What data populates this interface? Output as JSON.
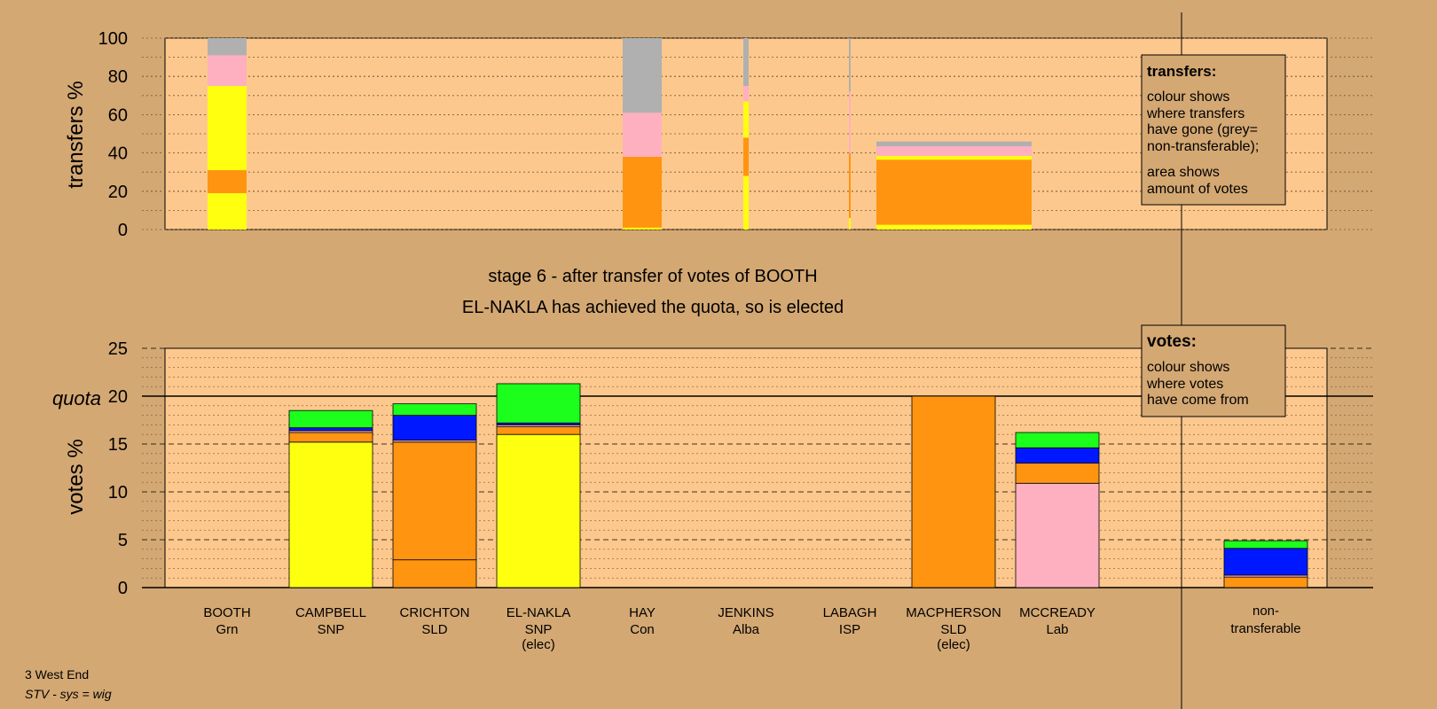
{
  "colors": {
    "page_bg": "#d4a873",
    "plot_bg": "#fdc88d",
    "Grn": "#1cff1c",
    "SNP": "#ffff10",
    "SLD": "#ff9410",
    "Lab": "#ffb0c0",
    "Alba": "#0018ff",
    "nontransferable": "#b0b0b0"
  },
  "headline": {
    "line1": "stage 6 - after transfer of votes of BOOTH",
    "line2": "EL-NAKLA has achieved the quota, so is elected"
  },
  "footer": {
    "line1": "3 West End",
    "line2": "STV - sys = wig"
  },
  "legends": {
    "transfers": {
      "title": "transfers:",
      "body1": [
        "colour shows",
        "where transfers",
        "have gone (grey=",
        "non-transferable);"
      ],
      "body2": [
        "area shows",
        "amount of votes"
      ]
    },
    "votes": {
      "title": "votes:",
      "body": [
        "colour shows",
        "where votes",
        "have come from"
      ]
    }
  },
  "chart_data": [
    {
      "type": "bar",
      "name": "transfers",
      "ylabel": "transfers %",
      "ylim": [
        0,
        100
      ],
      "yticks": [
        0,
        20,
        40,
        60,
        80,
        100
      ],
      "segments_order": [
        "SNP",
        "SLD",
        "SNP",
        "Lab",
        "nontransferable"
      ],
      "bars": [
        {
          "candidate": "BOOTH",
          "width": "wide",
          "segments": [
            {
              "party": "SNP",
              "from": 0,
              "to": 19
            },
            {
              "party": "SLD",
              "from": 19,
              "to": 31
            },
            {
              "party": "SNP",
              "from": 31,
              "to": 75
            },
            {
              "party": "Lab",
              "from": 75,
              "to": 91
            },
            {
              "party": "nontransferable",
              "from": 91,
              "to": 100
            }
          ]
        },
        {
          "candidate": "HAY",
          "width": "wide",
          "segments": [
            {
              "party": "SNP",
              "from": 0,
              "to": 1
            },
            {
              "party": "SLD",
              "from": 1,
              "to": 38
            },
            {
              "party": "Lab",
              "from": 38,
              "to": 61
            },
            {
              "party": "nontransferable",
              "from": 61,
              "to": 100
            }
          ]
        },
        {
          "candidate": "JENKINS",
          "width": "thin",
          "segments": [
            {
              "party": "SNP",
              "from": 0,
              "to": 28
            },
            {
              "party": "SLD",
              "from": 28,
              "to": 48
            },
            {
              "party": "SNP",
              "from": 48,
              "to": 67
            },
            {
              "party": "Lab",
              "from": 67,
              "to": 75
            },
            {
              "party": "nontransferable",
              "from": 75,
              "to": 100
            }
          ]
        },
        {
          "candidate": "LABAGH",
          "width": "hairline",
          "segments": [
            {
              "party": "SNP",
              "from": 0,
              "to": 6
            },
            {
              "party": "SLD",
              "from": 6,
              "to": 40
            },
            {
              "party": "Lab",
              "from": 40,
              "to": 72
            },
            {
              "party": "nontransferable",
              "from": 72,
              "to": 100
            }
          ]
        },
        {
          "candidate": "MACPHERSON",
          "width": "span",
          "segments": [
            {
              "party": "SNP",
              "from": 0,
              "to": 2.5
            },
            {
              "party": "SLD",
              "from": 2.5,
              "to": 36.5
            },
            {
              "party": "SNP",
              "from": 36.5,
              "to": 38.5
            },
            {
              "party": "Lab",
              "from": 38.5,
              "to": 43.5
            },
            {
              "party": "nontransferable",
              "from": 43.5,
              "to": 46
            }
          ]
        }
      ]
    },
    {
      "type": "bar",
      "name": "votes",
      "ylabel": "votes %",
      "ylim": [
        0,
        25
      ],
      "yticks": [
        0,
        5,
        10,
        15,
        20,
        25
      ],
      "quota": 20,
      "quota_label": "quota",
      "candidates": [
        {
          "name": "BOOTH",
          "party": "Grn",
          "elected": false,
          "segments": []
        },
        {
          "name": "CAMPBELL",
          "party": "SNP",
          "elected": false,
          "segments": [
            {
              "party": "SNP",
              "value": 15.2
            },
            {
              "party": "SLD",
              "value": 1.0
            },
            {
              "party": "Lab",
              "value": 0.2
            },
            {
              "party": "Alba",
              "value": 0.3
            },
            {
              "party": "Grn",
              "value": 1.8
            }
          ]
        },
        {
          "name": "CRICHTON",
          "party": "SLD",
          "elected": false,
          "segments": [
            {
              "party": "SLD",
              "value": 2.9
            },
            {
              "party": "SLD",
              "value": 12.3
            },
            {
              "party": "Lab",
              "value": 0.2
            },
            {
              "party": "Alba",
              "value": 2.6
            },
            {
              "party": "Grn",
              "value": 1.2
            }
          ]
        },
        {
          "name": "EL-NAKLA",
          "party": "SNP",
          "elected": true,
          "segments": [
            {
              "party": "SNP",
              "value": 16.0
            },
            {
              "party": "SLD",
              "value": 0.8
            },
            {
              "party": "Lab",
              "value": 0.2
            },
            {
              "party": "Alba",
              "value": 0.2
            },
            {
              "party": "Grn",
              "value": 4.1
            }
          ]
        },
        {
          "name": "HAY",
          "party": "Con",
          "elected": false,
          "segments": []
        },
        {
          "name": "JENKINS",
          "party": "Alba",
          "elected": false,
          "segments": []
        },
        {
          "name": "LABAGH",
          "party": "ISP",
          "elected": false,
          "segments": []
        },
        {
          "name": "MACPHERSON",
          "party": "SLD",
          "elected": true,
          "segments": [
            {
              "party": "SLD",
              "value": 20.0
            }
          ]
        },
        {
          "name": "MCCREADY",
          "party": "Lab",
          "elected": false,
          "segments": [
            {
              "party": "Lab",
              "value": 10.9
            },
            {
              "party": "SLD",
              "value": 2.1
            },
            {
              "party": "Alba",
              "value": 1.6
            },
            {
              "party": "Grn",
              "value": 1.6
            }
          ]
        },
        {
          "name": "non-transferable",
          "party": "",
          "elected": false,
          "nontransferable": true,
          "segments": [
            {
              "party": "SLD",
              "value": 1.1
            },
            {
              "party": "Lab",
              "value": 0.2
            },
            {
              "party": "Alba",
              "value": 2.8
            },
            {
              "party": "Grn",
              "value": 0.8
            }
          ]
        }
      ],
      "elected_marker": "(elec)",
      "nontransferable_label": [
        "non-",
        "transferable"
      ]
    }
  ]
}
